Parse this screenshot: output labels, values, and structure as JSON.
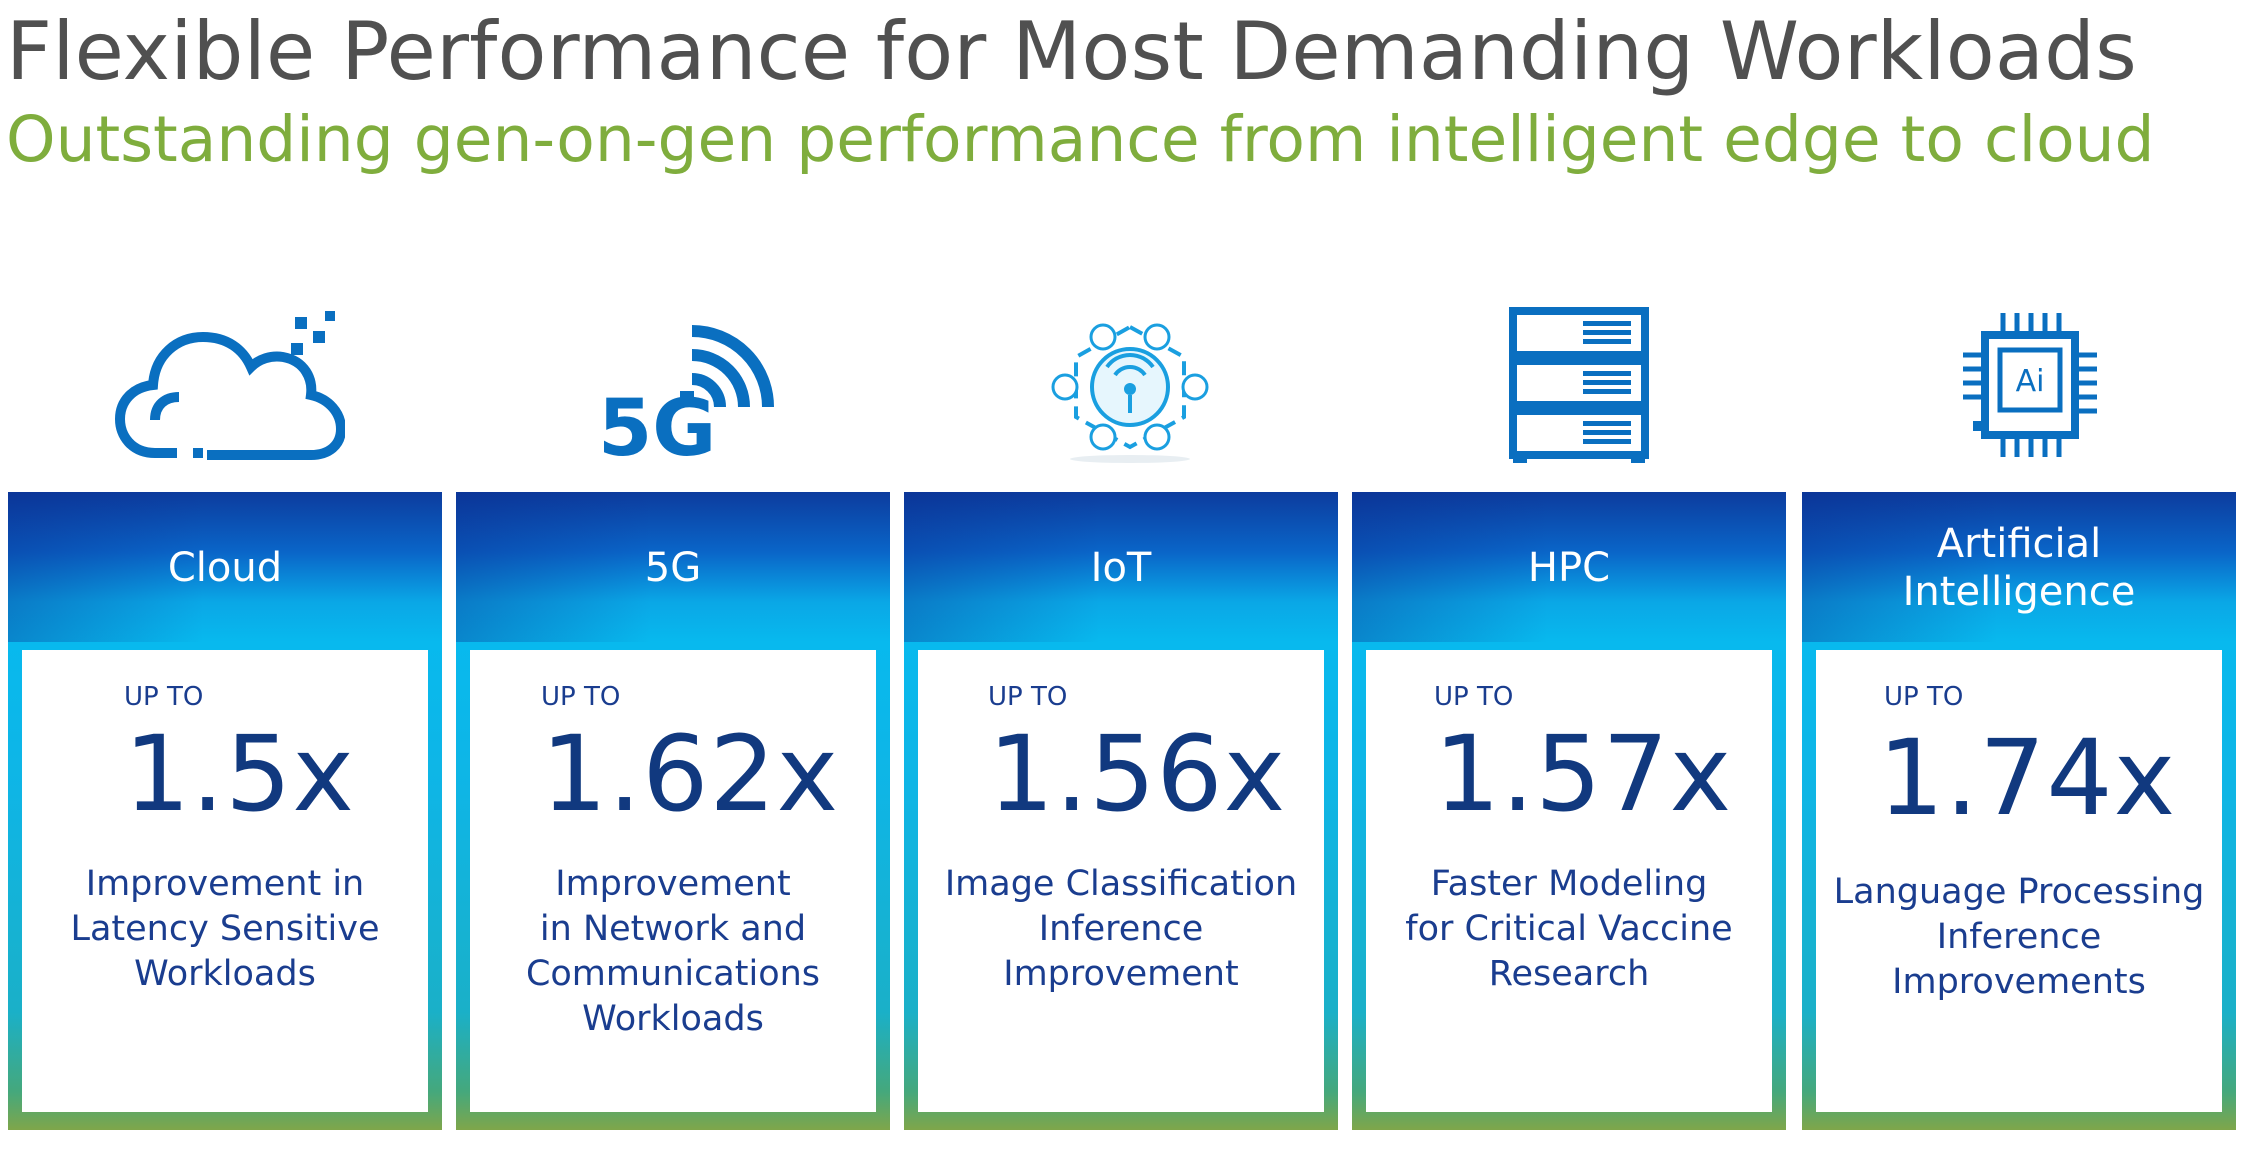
{
  "title": "Flexible Performance for Most Demanding Workloads",
  "subtitle": "Outstanding gen-on-gen performance from intelligent edge to cloud",
  "colors": {
    "title": "#505050",
    "subtitle": "#7fad3d",
    "icon_blue": "#0a6fc0",
    "text_navy": "#11397f",
    "panel_top": "#0c3c9e",
    "panel_mid": "#08b9ee",
    "panel_bottom": "#7fa64a"
  },
  "icons": [
    "cloud-icon",
    "5g-icon",
    "iot-icon",
    "server-rack-icon",
    "ai-chip-icon"
  ],
  "icon_5g_label": "5G",
  "icon_ai_label": "Ai",
  "panels": [
    {
      "label": "Cloud",
      "prefix": "UP TO",
      "value": "1.5x",
      "description": "Improvement in\nLatency Sensitive\nWorkloads"
    },
    {
      "label": "5G",
      "prefix": "UP TO",
      "value": "1.62x",
      "description": "Improvement\nin Network and\nCommunications\nWorkloads"
    },
    {
      "label": "IoT",
      "prefix": "UP TO",
      "value": "1.56x",
      "description": "Image Classification\nInference\nImprovement"
    },
    {
      "label": "HPC",
      "prefix": "UP TO",
      "value": "1.57x",
      "description": "Faster Modeling\nfor Critical Vaccine\nResearch"
    },
    {
      "label": "Artificial\nIntelligence",
      "prefix": "UP TO",
      "value": "1.74x",
      "description": "Language Processing\nInference\nImprovements"
    }
  ]
}
